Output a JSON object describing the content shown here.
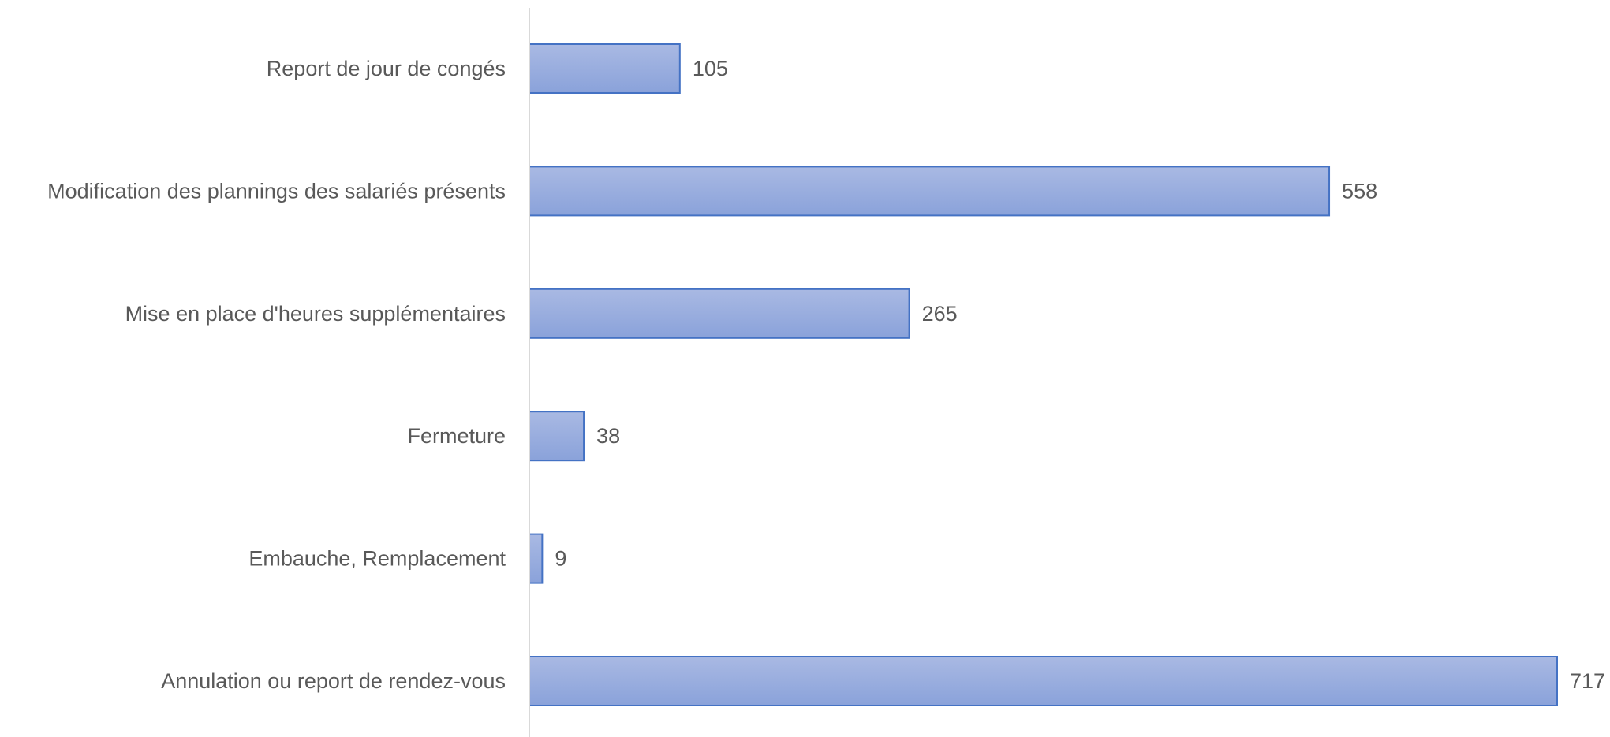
{
  "chart_data": {
    "type": "bar",
    "orientation": "horizontal",
    "categories": [
      "Report de jour de congés",
      "Modification des plannings des salariés présents",
      "Mise en place d'heures supplémentaires",
      "Fermeture",
      "Embauche, Remplacement",
      "Annulation ou report de rendez-vous"
    ],
    "values": [
      105,
      558,
      265,
      38,
      9,
      717
    ],
    "data_labels": [
      "105",
      "558",
      "265",
      "38",
      "9",
      "717"
    ],
    "title": "",
    "xlabel": "",
    "ylabel": "",
    "xlim": [
      0,
      717
    ],
    "grid": false,
    "legend": "none",
    "colors": {
      "bar_top": "#a9b9e3",
      "bar_bottom": "#8aa2da",
      "bar_border": "#4472c4",
      "axis": "#d9d9d9",
      "text": "#595959"
    }
  }
}
